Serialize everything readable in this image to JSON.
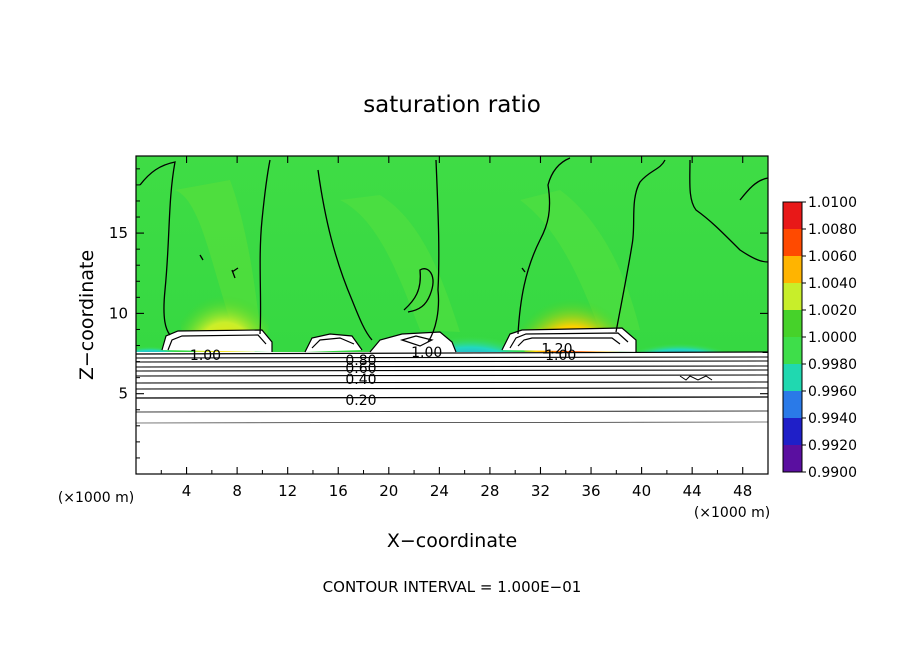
{
  "chart_data": {
    "type": "heatmap",
    "title": "saturation ratio",
    "xlabel": "X−coordinate",
    "ylabel": "Z−coordinate",
    "x_unit_left": "(×1000 m)",
    "x_unit_right": "(×1000 m)",
    "xlim": [
      0,
      50
    ],
    "ylim": [
      0,
      19.8
    ],
    "x_ticks": [
      4,
      8,
      12,
      16,
      20,
      24,
      28,
      32,
      36,
      40,
      44,
      48
    ],
    "y_ticks": [
      5,
      10,
      15
    ],
    "colorbar": {
      "levels": [
        "0.9900",
        "0.9920",
        "0.9940",
        "0.9960",
        "0.9980",
        "1.0000",
        "1.0020",
        "1.0040",
        "1.0060",
        "1.0080",
        "1.0100"
      ],
      "colors": [
        "#5a0fa0",
        "#1f1fc8",
        "#2a7ae8",
        "#20d8b0",
        "#3ede4a",
        "#46d22a",
        "#c8ee2a",
        "#ffb400",
        "#ff4a00",
        "#e81818",
        "#f07878"
      ]
    },
    "contour_labels": [
      {
        "text": "1.00",
        "x": 5.5,
        "y": 7.4
      },
      {
        "text": "1.00",
        "x": 23.0,
        "y": 7.6
      },
      {
        "text": "1.20",
        "x": 33.3,
        "y": 7.8
      },
      {
        "text": "1.00",
        "x": 33.6,
        "y": 7.4
      },
      {
        "text": "0.80",
        "x": 17.8,
        "y": 7.1
      },
      {
        "text": "0.60",
        "x": 17.8,
        "y": 6.6
      },
      {
        "text": "0.40",
        "x": 17.8,
        "y": 5.9
      },
      {
        "text": "0.20",
        "x": 17.8,
        "y": 4.6
      }
    ],
    "contour_interval": "CONTOUR INTERVAL = 1.000E−01"
  }
}
